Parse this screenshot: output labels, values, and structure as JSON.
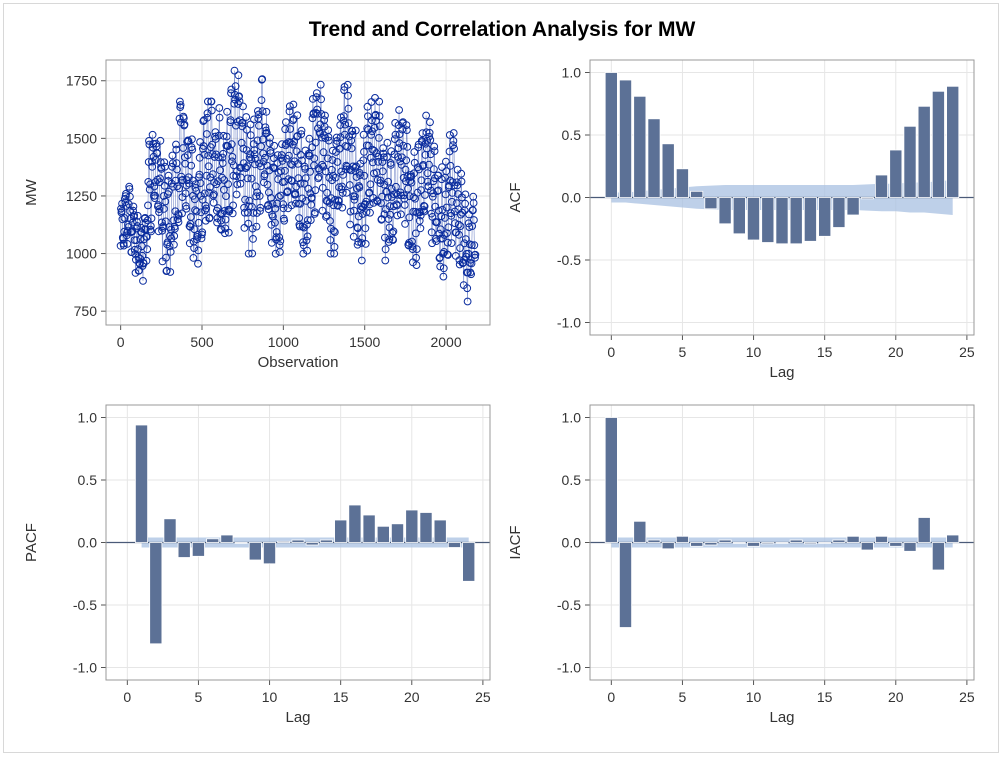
{
  "title": "Trend and Correlation Analysis for MW",
  "chart_data": [
    {
      "id": "trend",
      "type": "line",
      "xlabel": "Observation",
      "ylabel": "MW",
      "xlim": [
        -90,
        2270
      ],
      "ylim": [
        690,
        1840
      ],
      "xticks": [
        0,
        500,
        1000,
        1500,
        2000
      ],
      "yticks": [
        750,
        1000,
        1250,
        1500,
        1750
      ],
      "series": [
        {
          "marker": "circle",
          "color": "#0a2c9e",
          "segments": [
            {
              "x0": 0,
              "x1": 160,
              "min": 880,
              "max": 1290
            },
            {
              "x0": 160,
              "x1": 360,
              "min": 920,
              "max": 1560
            },
            {
              "x0": 360,
              "x1": 600,
              "min": 950,
              "max": 1660
            },
            {
              "x0": 600,
              "x1": 870,
              "min": 1000,
              "max": 1810
            },
            {
              "x0": 870,
              "x1": 1100,
              "min": 990,
              "max": 1650
            },
            {
              "x0": 1100,
              "x1": 1400,
              "min": 1000,
              "max": 1740
            },
            {
              "x0": 1400,
              "x1": 1650,
              "min": 970,
              "max": 1710
            },
            {
              "x0": 1650,
              "x1": 1900,
              "min": 950,
              "max": 1650
            },
            {
              "x0": 1900,
              "x1": 2050,
              "min": 900,
              "max": 1570
            },
            {
              "x0": 2050,
              "x1": 2150,
              "min": 790,
              "max": 1400
            },
            {
              "x0": 2150,
              "x1": 2180,
              "min": 850,
              "max": 1410
            }
          ]
        }
      ]
    },
    {
      "id": "acf",
      "type": "bar",
      "xlabel": "Lag",
      "ylabel": "ACF",
      "xlim": [
        -1.5,
        25.5
      ],
      "ylim": [
        -1.1,
        1.1
      ],
      "xticks": [
        0,
        5,
        10,
        15,
        20,
        25
      ],
      "yticks": [
        -1.0,
        -0.5,
        0.0,
        0.5,
        1.0
      ],
      "x": [
        0,
        1,
        2,
        3,
        4,
        5,
        6,
        7,
        8,
        9,
        10,
        11,
        12,
        13,
        14,
        15,
        16,
        17,
        18,
        19,
        20,
        21,
        22,
        23,
        24
      ],
      "values": [
        1.0,
        0.94,
        0.81,
        0.63,
        0.43,
        0.23,
        0.05,
        -0.09,
        -0.21,
        -0.29,
        -0.34,
        -0.36,
        -0.37,
        -0.37,
        -0.35,
        -0.31,
        -0.24,
        -0.14,
        -0.01,
        0.18,
        0.38,
        0.57,
        0.73,
        0.85,
        0.89
      ],
      "confidence_band": [
        0.04,
        0.04,
        0.05,
        0.06,
        0.07,
        0.08,
        0.09,
        0.095,
        0.1,
        0.1,
        0.1,
        0.1,
        0.1,
        0.1,
        0.1,
        0.1,
        0.1,
        0.1,
        0.105,
        0.11,
        0.11,
        0.12,
        0.12,
        0.13,
        0.14
      ],
      "color": "#5c7196",
      "band_color": "#a8c0e2"
    },
    {
      "id": "pacf",
      "type": "bar",
      "xlabel": "Lag",
      "ylabel": "PACF",
      "xlim": [
        -1.5,
        25.5
      ],
      "ylim": [
        -1.1,
        1.1
      ],
      "xticks": [
        0,
        5,
        10,
        15,
        20,
        25
      ],
      "yticks": [
        -1.0,
        -0.5,
        0.0,
        0.5,
        1.0
      ],
      "x": [
        1,
        2,
        3,
        4,
        5,
        6,
        7,
        8,
        9,
        10,
        11,
        12,
        13,
        14,
        15,
        16,
        17,
        18,
        19,
        20,
        21,
        22,
        23,
        24
      ],
      "values": [
        0.94,
        -0.81,
        0.19,
        -0.12,
        -0.11,
        0.03,
        0.06,
        0.0,
        -0.14,
        -0.17,
        0.01,
        0.02,
        -0.02,
        0.02,
        0.18,
        0.3,
        0.22,
        0.13,
        0.15,
        0.26,
        0.24,
        0.18,
        -0.04,
        -0.31
      ],
      "confidence_band": 0.04,
      "color": "#5c7196",
      "band_color": "#a8c0e2"
    },
    {
      "id": "iacf",
      "type": "bar",
      "xlabel": "Lag",
      "ylabel": "IACF",
      "xlim": [
        -1.5,
        25.5
      ],
      "ylim": [
        -1.1,
        1.1
      ],
      "xticks": [
        0,
        5,
        10,
        15,
        20,
        25
      ],
      "yticks": [
        -1.0,
        -0.5,
        0.0,
        0.5,
        1.0
      ],
      "x": [
        0,
        1,
        2,
        3,
        4,
        5,
        6,
        7,
        8,
        9,
        10,
        11,
        12,
        13,
        14,
        15,
        16,
        17,
        18,
        19,
        20,
        21,
        22,
        23,
        24
      ],
      "values": [
        1.0,
        -0.68,
        0.17,
        0.02,
        -0.05,
        0.05,
        -0.03,
        -0.02,
        0.02,
        0.0,
        -0.03,
        -0.01,
        0.0,
        0.02,
        -0.01,
        0.0,
        0.02,
        0.05,
        -0.06,
        0.05,
        -0.03,
        -0.07,
        0.2,
        -0.22,
        0.06
      ],
      "confidence_band": 0.04,
      "color": "#5c7196",
      "band_color": "#a8c0e2"
    }
  ]
}
